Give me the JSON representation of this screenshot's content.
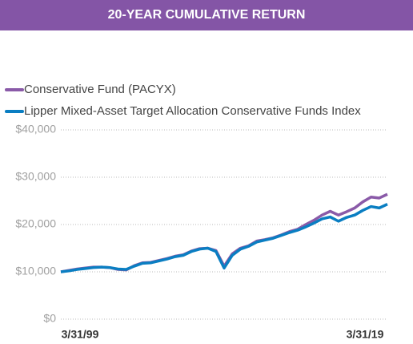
{
  "chart_data": {
    "type": "line",
    "title": "20-YEAR CUMULATIVE RETURN",
    "categories": [
      "3/31/99",
      null,
      null,
      null,
      null,
      null,
      null,
      null,
      null,
      null,
      null,
      null,
      null,
      null,
      null,
      null,
      null,
      null,
      null,
      null,
      null,
      null,
      null,
      null,
      null,
      null,
      null,
      null,
      null,
      null,
      null,
      null,
      null,
      null,
      null,
      null,
      null,
      null,
      null,
      null,
      "3/31/19"
    ],
    "series": [
      {
        "name": "Conservative Fund (PACYX)",
        "color": "#8a5aa8",
        "values": [
          10000,
          10300,
          10600,
          10800,
          11000,
          11000,
          10900,
          10500,
          10400,
          11300,
          11900,
          12000,
          12400,
          12800,
          13300,
          13600,
          14400,
          14900,
          15000,
          14500,
          11200,
          13800,
          15000,
          15500,
          16500,
          16800,
          17200,
          17800,
          18500,
          19000,
          20000,
          20900,
          22000,
          22800,
          22000,
          22700,
          23500,
          24800,
          25800,
          25600,
          26400
        ]
      },
      {
        "name": "Lipper Mixed-Asset Target Allocation Conservative Funds Index",
        "color": "#0a7ec2",
        "values": [
          10000,
          10200,
          10500,
          10700,
          10900,
          11000,
          10900,
          10600,
          10500,
          11200,
          11800,
          11900,
          12300,
          12700,
          13200,
          13500,
          14300,
          14800,
          15000,
          14300,
          10800,
          13500,
          14800,
          15400,
          16300,
          16700,
          17100,
          17700,
          18300,
          18800,
          19500,
          20300,
          21200,
          21600,
          20700,
          21500,
          22000,
          23000,
          23800,
          23500,
          24300
        ]
      }
    ],
    "ylim": [
      0,
      40000
    ],
    "yticks": [
      {
        "value": 0,
        "label": "$0"
      },
      {
        "value": 10000,
        "label": "$10,000"
      },
      {
        "value": 20000,
        "label": "$20,000"
      },
      {
        "value": 30000,
        "label": "$30,000"
      },
      {
        "value": 40000,
        "label": "$40,000"
      }
    ],
    "grid": true
  }
}
